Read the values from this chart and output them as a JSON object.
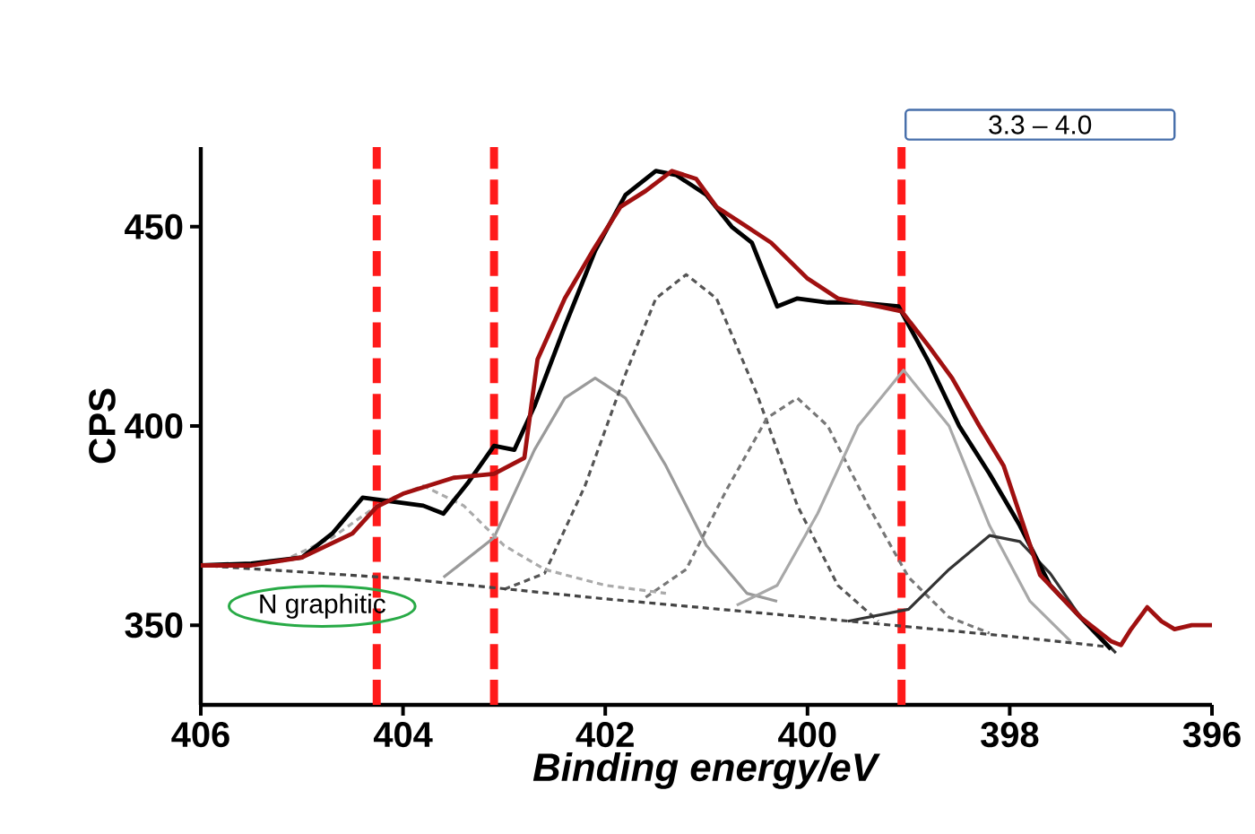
{
  "chart_data": {
    "type": "line",
    "xlabel": "*Binding energy/eV*",
    "ylabel": "CPS",
    "xlim": [
      406,
      396
    ],
    "ylim": [
      330,
      470
    ],
    "xticks": [
      406,
      404,
      402,
      400,
      398,
      396
    ],
    "yticks": [
      350,
      400,
      450
    ],
    "series": [
      {
        "color": "#000000",
        "line_style": "solid",
        "x": [
          406,
          405.5,
          405,
          404.7,
          404.4,
          404.1,
          403.8,
          403.6,
          403.35,
          403.1,
          402.9,
          402.7,
          402.4,
          402.1,
          401.8,
          401.5,
          401.3,
          401.0,
          400.75,
          400.55,
          400.3,
          400.1,
          399.8,
          399.5,
          399.1,
          398.8,
          398.5,
          398.2,
          397.9,
          397.6,
          397.3,
          397.0
        ],
        "values": [
          365,
          365.5,
          367,
          373,
          382,
          381,
          380,
          378,
          386,
          395,
          394,
          405,
          425,
          444,
          458,
          464,
          463,
          458,
          450,
          446,
          430,
          432,
          431,
          431,
          430,
          416,
          400,
          388,
          375,
          360,
          352,
          344
        ]
      },
      {
        "color": "#a01010",
        "line_style": "solid",
        "x": [
          406,
          405.5,
          405,
          404.5,
          404.26,
          404.0,
          403.5,
          403.1,
          402.8,
          402.67,
          402.4,
          402.13,
          401.85,
          401.6,
          401.34,
          401.1,
          400.9,
          400.6,
          400.36,
          400.0,
          399.7,
          399.3,
          399.07,
          398.8,
          398.57,
          398.3,
          398.06,
          397.7,
          397.3,
          397.0,
          396.9,
          396.8,
          396.64,
          396.5,
          396.37,
          396.2,
          396.0
        ],
        "values": [
          365,
          365,
          367,
          373,
          379.7,
          383,
          387,
          388,
          392,
          416.7,
          432,
          443.7,
          455,
          459,
          464,
          462,
          455,
          450,
          446,
          437,
          432,
          430,
          428.8,
          420,
          412,
          400,
          390,
          362.6,
          352,
          346,
          345,
          349,
          354.5,
          351,
          349,
          350,
          350
        ]
      },
      {
        "color": "#9a9a9a",
        "line_style": "solid",
        "x": [
          403.6,
          403.1,
          402.7,
          402.4,
          402.1,
          401.8,
          401.4,
          401.0,
          400.6,
          400.3
        ],
        "values": [
          362,
          372,
          394,
          407,
          412,
          407,
          390,
          370,
          358,
          356
        ]
      },
      {
        "color": "#555555",
        "line_style": "dashed",
        "x": [
          403.0,
          402.6,
          402.2,
          401.8,
          401.5,
          401.2,
          400.9,
          400.5,
          400.1,
          399.7,
          399.3
        ],
        "values": [
          359,
          363,
          385,
          413,
          432,
          438,
          432,
          408,
          380,
          360,
          351
        ]
      },
      {
        "color": "#777777",
        "line_style": "dashed",
        "x": [
          401.6,
          401.2,
          400.8,
          400.4,
          400.1,
          399.8,
          399.4,
          399.0,
          398.6,
          398.2
        ],
        "values": [
          357,
          364,
          384,
          402,
          407,
          400,
          380,
          362,
          352,
          348
        ]
      },
      {
        "color": "#a8a8a8",
        "line_style": "solid",
        "x": [
          400.7,
          400.3,
          399.9,
          399.5,
          399.05,
          398.6,
          398.2,
          397.8,
          397.4
        ],
        "values": [
          355,
          360,
          378,
          400,
          414,
          400,
          375,
          356,
          346
        ]
      },
      {
        "color": "#333333",
        "line_style": "solid",
        "x": [
          399.6,
          399.0,
          398.6,
          398.2,
          397.9,
          397.6,
          397.3,
          396.95
        ],
        "values": [
          351,
          354,
          364,
          372.5,
          371,
          363,
          352,
          343
        ]
      },
      {
        "color": "#aaaaaa",
        "line_style": "dashed",
        "x": [
          405.2,
          404.7,
          404.2,
          403.8,
          403.4,
          403.0,
          402.6,
          402.0,
          401.4
        ],
        "values": [
          366,
          372,
          381,
          385,
          380,
          370,
          364,
          360,
          358
        ]
      },
      {
        "color": "#444444",
        "line_style": "dashed",
        "x": [
          406,
          404,
          402,
          400,
          398,
          397
        ],
        "values": [
          365,
          361.7,
          356.6,
          352,
          347.2,
          344.5
        ]
      }
    ],
    "ref_lines": [
      {
        "axis": "x",
        "value": 404.26,
        "color": "#ff1a1a",
        "line_style": "dashed"
      },
      {
        "axis": "x",
        "value": 403.1,
        "color": "#ff1a1a",
        "line_style": "dashed"
      },
      {
        "axis": "x",
        "value": 399.07,
        "color": "#ff1a1a",
        "line_style": "dashed"
      }
    ],
    "annotations": [
      "N graphitic",
      "3.3 – 4.0"
    ]
  }
}
